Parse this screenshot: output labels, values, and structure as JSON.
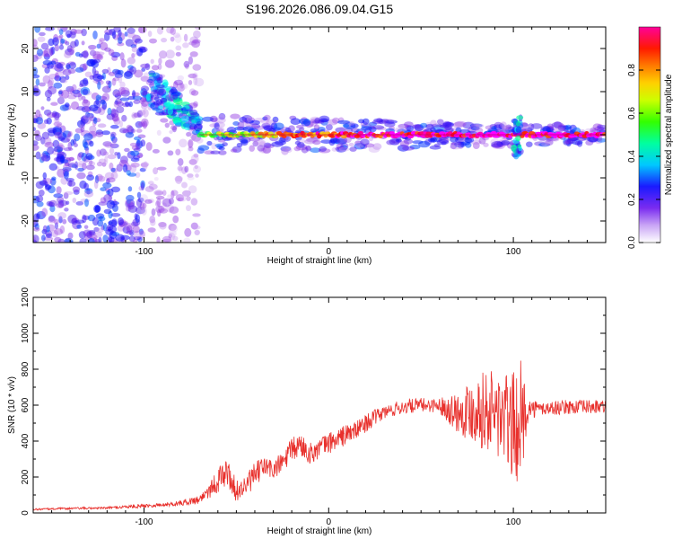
{
  "title": "S196.2026.086.09.04.G15",
  "colors": {
    "snr_line": "#e8302c",
    "axis": "#000000",
    "scatter_purple": "#7a2cf0",
    "background": "#ffffff"
  },
  "chart_data": [
    {
      "type": "heatmap",
      "name": "spectrogram",
      "xlabel": "Height of straight line (km)",
      "ylabel": "Frequency (Hz)",
      "xlim": [
        -160,
        150
      ],
      "ylim": [
        -25,
        25
      ],
      "x_ticks": [
        -100,
        0,
        100
      ],
      "x_tick_labels": [
        "-100",
        "0",
        "100"
      ],
      "y_ticks": [
        -20,
        -10,
        0,
        10,
        20
      ],
      "y_tick_labels": [
        "-20",
        "-10",
        "0",
        "10",
        "20"
      ],
      "features": [
        {
          "description": "noise region",
          "x_range": [
            -160,
            -100
          ],
          "y_range": [
            -25,
            25
          ],
          "amplitude": 0.2
        },
        {
          "description": "sparse noise",
          "x_range": [
            -100,
            -70
          ],
          "y_range": [
            -25,
            25
          ],
          "amplitude": 0.1
        },
        {
          "description": "converging tail",
          "x_range": [
            -100,
            -70
          ],
          "y_start": 12,
          "y_end": 2,
          "amplitude": 0.3
        },
        {
          "description": "signal band",
          "x_range": [
            -70,
            150
          ],
          "y_center": 0,
          "amplitude_start": 0.5,
          "amplitude_end": 1.0
        },
        {
          "description": "disturbance",
          "x_center": 102,
          "y_range": [
            -5,
            4
          ],
          "amplitude": 0.3
        }
      ],
      "colorbar": {
        "label": "Normalized spectral amplitude",
        "range": [
          0,
          1
        ],
        "ticks": [
          0.0,
          0.2,
          0.4,
          0.6,
          0.8
        ],
        "tick_labels": [
          "0.0",
          "0.2",
          "0.4",
          "0.6",
          "0.8"
        ],
        "colormap": [
          "#ffffff",
          "#8a2be2",
          "#0000ff",
          "#00ffff",
          "#00ff00",
          "#ffff00",
          "#ff7f00",
          "#ff0000",
          "#ff00ff"
        ]
      }
    },
    {
      "type": "line",
      "name": "snr",
      "xlabel": "Height of straight line (km)",
      "ylabel": "SNR (10 * v/v)",
      "xlim": [
        -160,
        150
      ],
      "ylim": [
        0,
        1200
      ],
      "x_ticks": [
        -100,
        0,
        100
      ],
      "x_tick_labels": [
        "-100",
        "0",
        "100"
      ],
      "y_ticks": [
        0,
        200,
        400,
        600,
        800,
        1000,
        1200
      ],
      "y_tick_labels": [
        "0",
        "200",
        "400",
        "600",
        "800",
        "1000",
        "1200"
      ],
      "series": [
        {
          "name": "SNR",
          "x": [
            -160,
            -140,
            -120,
            -100,
            -90,
            -80,
            -70,
            -60,
            -55,
            -50,
            -45,
            -40,
            -35,
            -30,
            -25,
            -20,
            -15,
            -10,
            -5,
            0,
            5,
            10,
            15,
            20,
            30,
            40,
            50,
            60,
            70,
            80,
            90,
            95,
            100,
            104,
            108,
            115,
            130,
            150
          ],
          "values": [
            20,
            25,
            28,
            40,
            45,
            55,
            75,
            180,
            230,
            120,
            150,
            210,
            260,
            240,
            280,
            350,
            380,
            330,
            360,
            390,
            410,
            440,
            460,
            500,
            560,
            590,
            600,
            600,
            560,
            580,
            560,
            520,
            480,
            500,
            580,
            580,
            590,
            590
          ],
          "noise_amplitude": [
            5,
            6,
            6,
            12,
            10,
            15,
            25,
            70,
            80,
            60,
            60,
            70,
            60,
            60,
            60,
            70,
            70,
            60,
            60,
            60,
            60,
            60,
            50,
            50,
            40,
            40,
            40,
            40,
            120,
            200,
            250,
            280,
            300,
            350,
            60,
            40,
            40,
            40
          ]
        }
      ]
    }
  ]
}
